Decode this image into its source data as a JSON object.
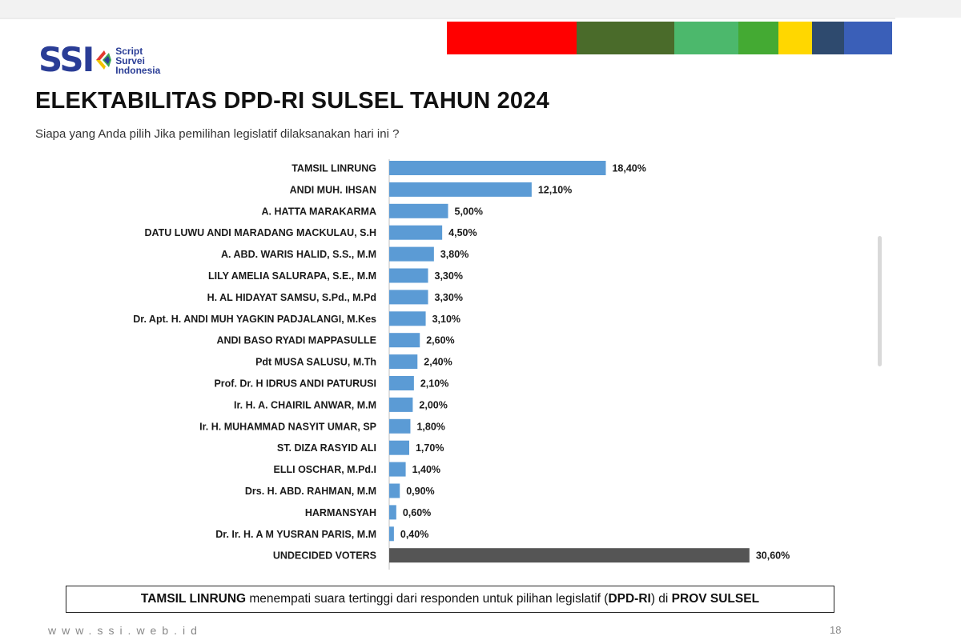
{
  "logo": {
    "letters": "SSI",
    "line1": "Script",
    "line2": "Survei",
    "line3": "Indonesia"
  },
  "colors": {
    "bar": "#5b9bd5",
    "undecided_bar": "#555555",
    "logo_blue": "#2a3d96"
  },
  "color_strip": [
    "#ff0000",
    "#4a6b2a",
    "#4cb86c",
    "#44aa33",
    "#ffd700",
    "#2e4a6e",
    "#3a5fb8"
  ],
  "title": "ELEKTABILITAS DPD-RI SULSEL TAHUN 2024",
  "subtitle": "Siapa yang Anda pilih Jika pemilihan legislatif dilaksanakan hari ini ?",
  "chart_data": {
    "type": "bar",
    "orientation": "horizontal",
    "title": "",
    "xlabel": "",
    "ylabel": "",
    "xlim": [
      0,
      31
    ],
    "grid": false,
    "legend": "none",
    "categories": [
      "TAMSIL LINRUNG",
      "ANDI MUH. IHSAN",
      "A. HATTA MARAKARMA",
      "DATU LUWU ANDI MARADANG MACKULAU, S.H",
      "A. ABD. WARIS HALID, S.S., M.M",
      "LILY AMELIA SALURAPA, S.E., M.M",
      "H. AL HIDAYAT SAMSU, S.Pd., M.Pd",
      "Dr. Apt. H. ANDI MUH YAGKIN PADJALANGI, M.Kes",
      "ANDI BASO RYADI MAPPASULLE",
      "Pdt MUSA SALUSU, M.Th",
      "Prof. Dr. H IDRUS ANDI PATURUSI",
      "Ir. H. A. CHAIRIL ANWAR, M.M",
      "Ir. H. MUHAMMAD NASYIT UMAR, SP",
      "ST. DIZA RASYID ALI",
      "ELLI OSCHAR, M.Pd.I",
      "Drs. H. ABD. RAHMAN, M.M",
      "HARMANSYAH",
      "Dr. Ir. H. A M YUSRAN PARIS, M.M",
      "UNDECIDED VOTERS"
    ],
    "values": [
      18.4,
      12.1,
      5.0,
      4.5,
      3.8,
      3.3,
      3.3,
      3.1,
      2.6,
      2.4,
      2.1,
      2.0,
      1.8,
      1.7,
      1.4,
      0.9,
      0.6,
      0.4,
      30.6
    ],
    "value_labels": [
      "18,40%",
      "12,10%",
      "5,00%",
      "4,50%",
      "3,80%",
      "3,30%",
      "3,30%",
      "3,10%",
      "2,60%",
      "2,40%",
      "2,10%",
      "2,00%",
      "1,80%",
      "1,70%",
      "1,40%",
      "0,90%",
      "0,60%",
      "0,40%",
      "30,60%"
    ]
  },
  "callout": {
    "name": "TAMSIL LINRUNG",
    "text1": " menempati suara tertinggi dari responden untuk pilihan legislatif (",
    "dpd": "DPD-RI",
    "text2": ") di ",
    "prov": "PROV SULSEL"
  },
  "footer": {
    "website": "www.ssi.web.id",
    "page": "18"
  }
}
